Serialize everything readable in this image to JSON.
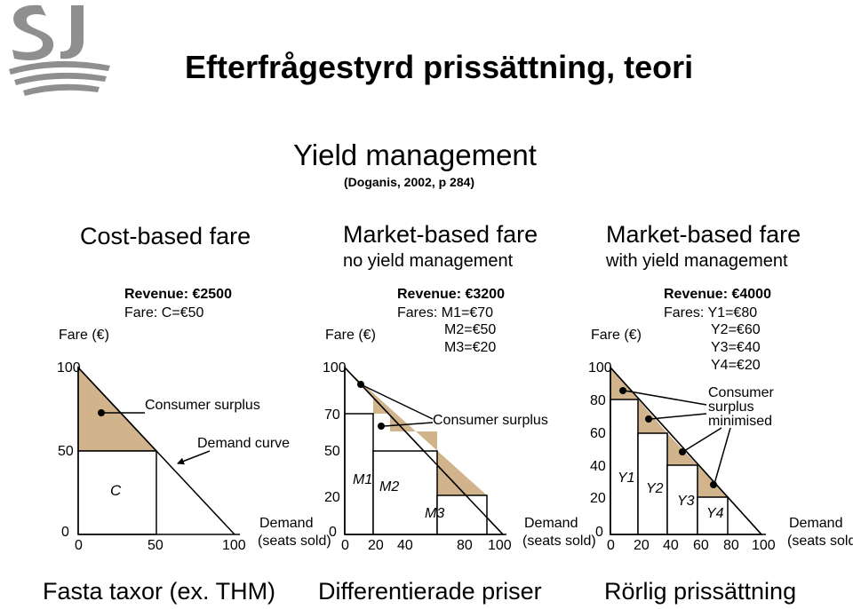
{
  "title": "Efterfrågestyrd prissättning, teori",
  "subtitle": "Yield management",
  "citation": "(Doganis, 2002, p 284)",
  "colors": {
    "surplus_fill": "#d2b48c",
    "logo": "#8f8f8f"
  },
  "panels": [
    {
      "heading": "Cost-based fare",
      "subheading": "",
      "revenue_label": "Revenue:",
      "revenue_value": "€2500",
      "fares_label": "Fare: C=",
      "fares": [
        "€50"
      ],
      "y_axis_label": "Fare (€)",
      "y_ticks": [
        "100",
        "50",
        "0"
      ],
      "x_ticks": [
        "0",
        "50",
        "100"
      ],
      "x_axis_label": [
        "Demand",
        "(seats sold)"
      ],
      "block_labels": [
        "C"
      ],
      "annotations": [
        "Consumer surplus",
        "Demand curve"
      ],
      "footer": "Fasta taxor (ex. THM)"
    },
    {
      "heading": "Market-based fare",
      "subheading": "no yield management",
      "revenue_label": "Revenue:",
      "revenue_value": "€3200",
      "fares_label": "Fares:",
      "fares": [
        "M1=€70",
        "M2=€50",
        "M3=€20"
      ],
      "y_axis_label": "Fare (€)",
      "y_ticks": [
        "100",
        "70",
        "50",
        "20",
        "0"
      ],
      "x_ticks": [
        "0",
        "20",
        "40",
        "80",
        "100"
      ],
      "x_axis_label": [
        "Demand",
        "(seats sold)"
      ],
      "block_labels": [
        "M1",
        "M2",
        "M3"
      ],
      "annotations": [
        "Consumer surplus"
      ],
      "footer": "Differentierade priser"
    },
    {
      "heading": "Market-based fare",
      "subheading": "with yield management",
      "revenue_label": "Revenue:",
      "revenue_value": "€4000",
      "fares_label": "Fares:",
      "fares": [
        "Y1=€80",
        "Y2=€60",
        "Y3=€40",
        "Y4=€20"
      ],
      "y_axis_label": "Fare (€)",
      "y_ticks": [
        "100",
        "80",
        "60",
        "40",
        "20",
        "0"
      ],
      "x_ticks": [
        "0",
        "20",
        "40",
        "60",
        "80",
        "100"
      ],
      "x_axis_label": [
        "Demand",
        "(seats sold)"
      ],
      "block_labels": [
        "Y1",
        "Y2",
        "Y3",
        "Y4"
      ],
      "annotations": [
        "Consumer",
        "surplus",
        "minimised"
      ],
      "footer": "Rörlig prissättning"
    }
  ]
}
